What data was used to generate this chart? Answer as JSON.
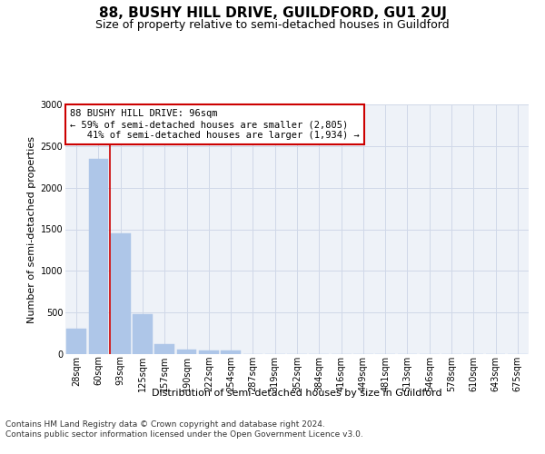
{
  "title": "88, BUSHY HILL DRIVE, GUILDFORD, GU1 2UJ",
  "subtitle": "Size of property relative to semi-detached houses in Guildford",
  "xlabel": "Distribution of semi-detached houses by size in Guildford",
  "ylabel": "Number of semi-detached properties",
  "categories": [
    "28sqm",
    "60sqm",
    "93sqm",
    "125sqm",
    "157sqm",
    "190sqm",
    "222sqm",
    "254sqm",
    "287sqm",
    "319sqm",
    "352sqm",
    "384sqm",
    "416sqm",
    "449sqm",
    "481sqm",
    "513sqm",
    "546sqm",
    "578sqm",
    "610sqm",
    "643sqm",
    "675sqm"
  ],
  "values": [
    305,
    2350,
    1450,
    475,
    120,
    60,
    45,
    40,
    0,
    0,
    0,
    0,
    0,
    0,
    0,
    0,
    0,
    0,
    0,
    0,
    0
  ],
  "bar_color": "#aec6e8",
  "bar_edge_color": "#aec6e8",
  "grid_color": "#d0d8e8",
  "background_color": "#eef2f8",
  "annotation_line1": "88 BUSHY HILL DRIVE: 96sqm",
  "annotation_line2": "← 59% of semi-detached houses are smaller (2,805)",
  "annotation_line3": "   41% of semi-detached houses are larger (1,934) →",
  "annotation_box_color": "#ffffff",
  "annotation_box_edge_color": "#cc0000",
  "ylim": [
    0,
    3000
  ],
  "yticks": [
    0,
    500,
    1000,
    1500,
    2000,
    2500,
    3000
  ],
  "footer_line1": "Contains HM Land Registry data © Crown copyright and database right 2024.",
  "footer_line2": "Contains public sector information licensed under the Open Government Licence v3.0.",
  "title_fontsize": 11,
  "subtitle_fontsize": 9,
  "axis_label_fontsize": 8,
  "tick_fontsize": 7,
  "annotation_fontsize": 7.5,
  "footer_fontsize": 6.5,
  "ylabel_fontsize": 8
}
